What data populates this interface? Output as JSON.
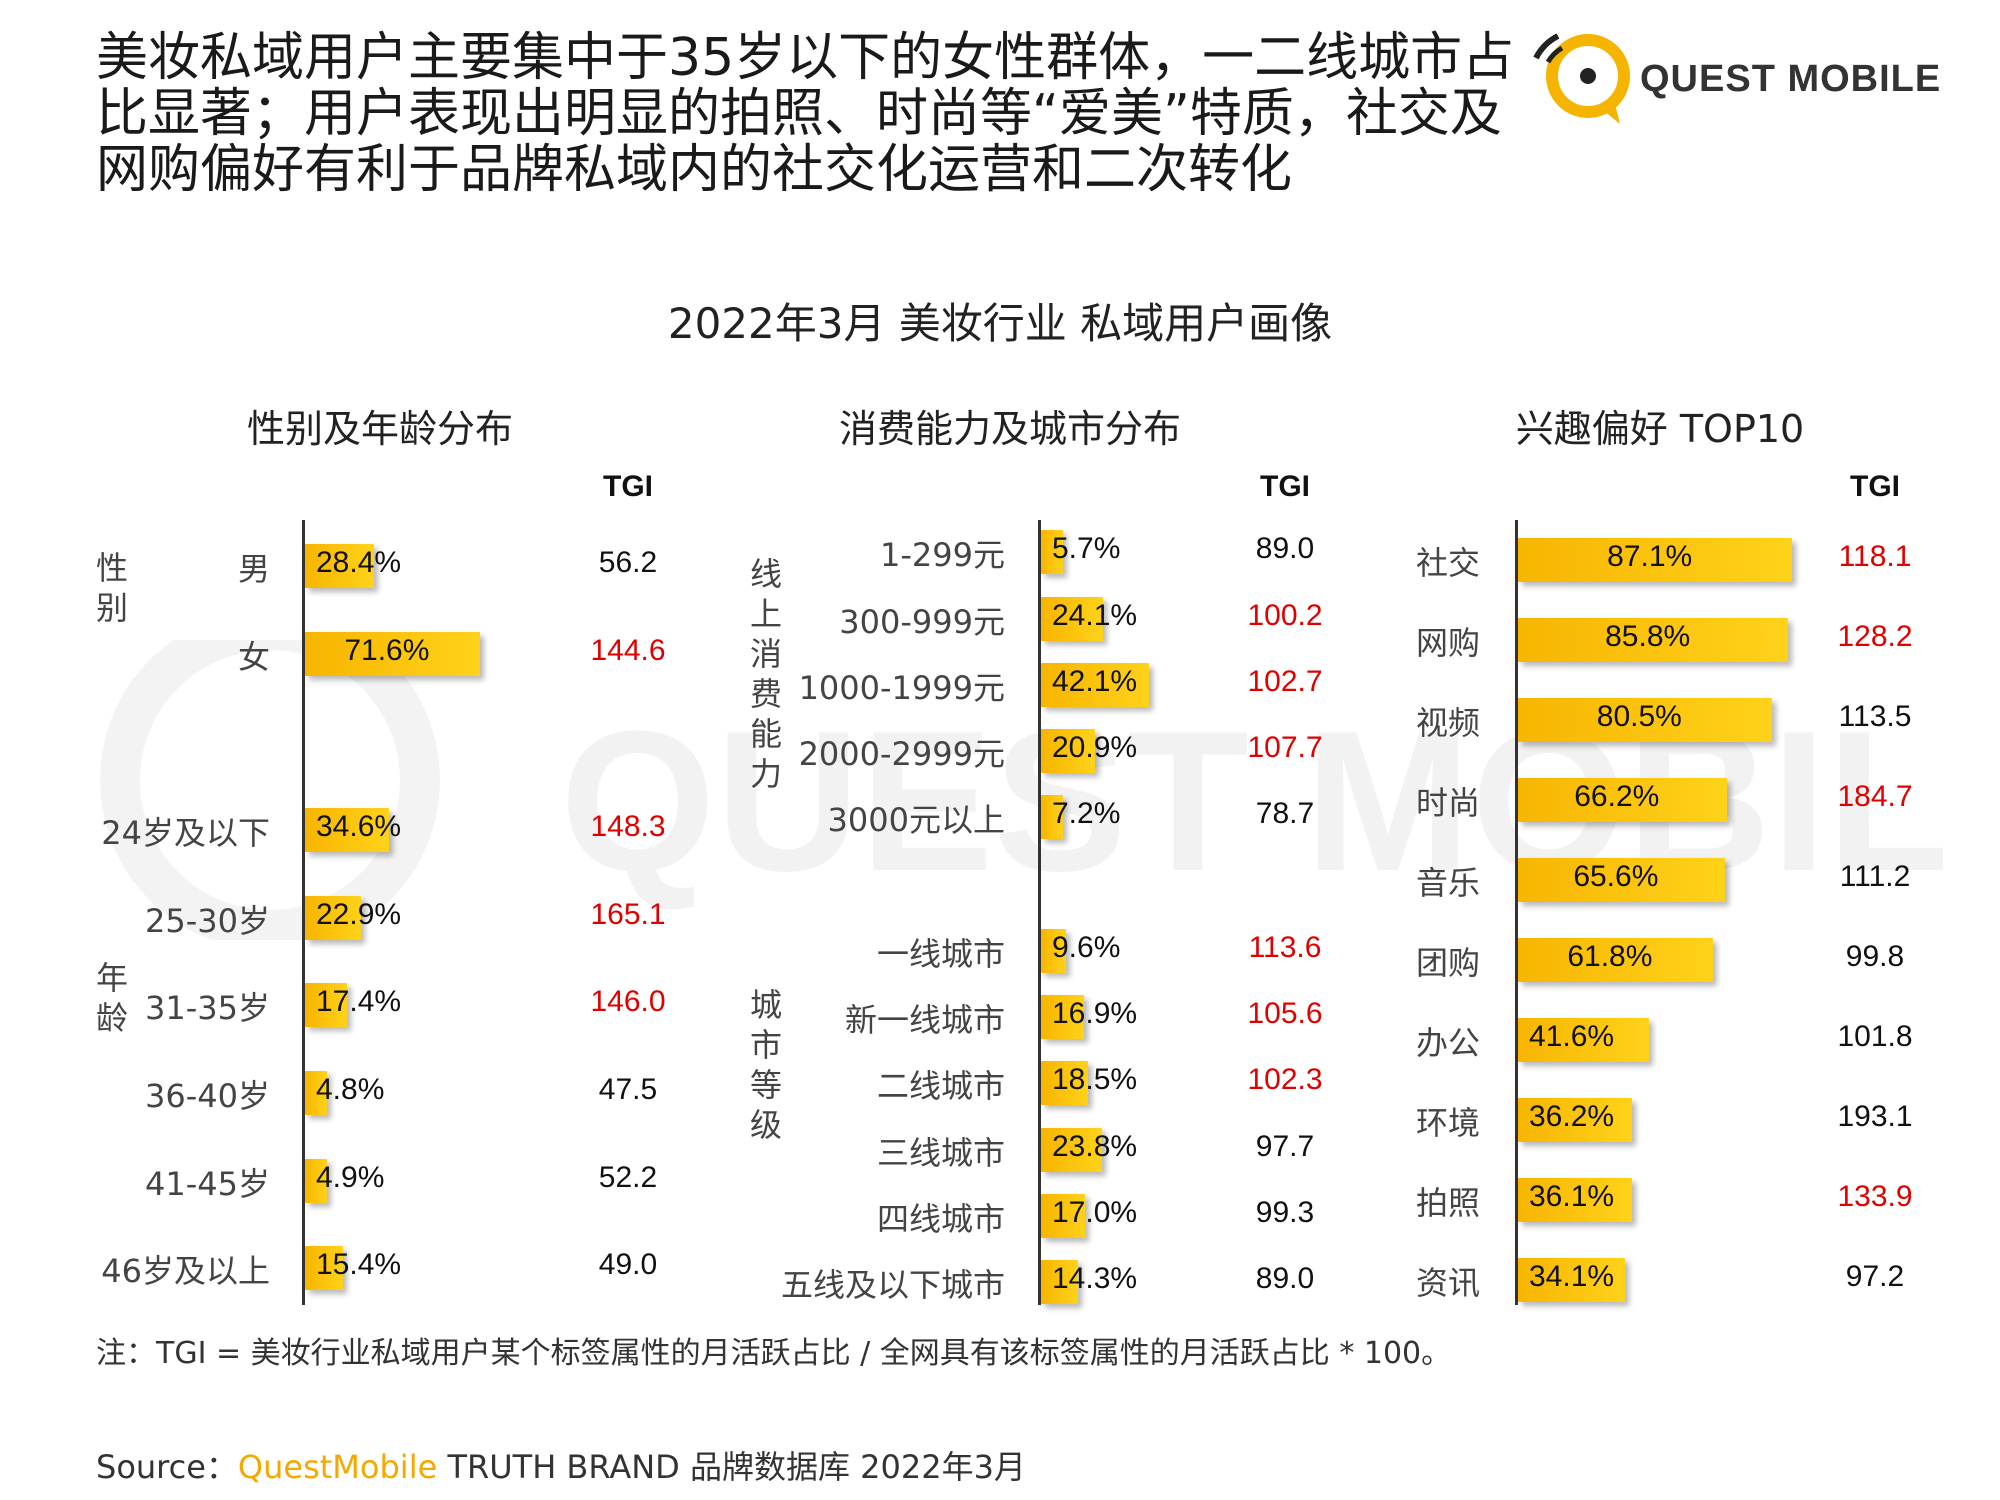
{
  "headline": "美妆私域用户主要集中于35岁以下的女性群体，一二线城市占比显著；用户表现出明显的拍照、时尚等“爱美”特质，社交及网购偏好有利于品牌私域内的社交化运营和二次转化",
  "logo": {
    "text": "QUEST MOBILE",
    "watermark_text": "QUEST MOBILE"
  },
  "subtitle": "2022年3月 美妆行业 私域用户画像",
  "tgi_header": "TGI",
  "colors": {
    "bar": "#f7b500",
    "tgi_high": "#e00000",
    "tgi_normal": "#111111",
    "brand": "#f5a800"
  },
  "chart_data": [
    {
      "type": "bar",
      "title": "性别及年龄分布",
      "groups": [
        {
          "label": "性别",
          "categories": [
            "男",
            "女"
          ],
          "values": [
            28.4,
            71.6
          ],
          "value_labels": [
            "28.4%",
            "71.6%"
          ],
          "tgi": [
            "56.2",
            "144.6"
          ],
          "tgi_highlight": [
            false,
            true
          ]
        },
        {
          "label": "年龄",
          "categories": [
            "24岁及以下",
            "25-30岁",
            "31-35岁",
            "36-40岁",
            "41-45岁",
            "46岁及以上"
          ],
          "values": [
            34.6,
            22.9,
            17.4,
            4.8,
            4.9,
            15.4
          ],
          "value_labels": [
            "34.6%",
            "22.9%",
            "17.4%",
            "4.8%",
            "4.9%",
            "15.4%"
          ],
          "tgi": [
            "148.3",
            "165.1",
            "146.0",
            "47.5",
            "52.2",
            "49.0"
          ],
          "tgi_highlight": [
            true,
            true,
            true,
            false,
            false,
            false
          ]
        }
      ]
    },
    {
      "type": "bar",
      "title": "消费能力及城市分布",
      "groups": [
        {
          "label": "线上消费能力",
          "categories": [
            "1-299元",
            "300-999元",
            "1000-1999元",
            "2000-2999元",
            "3000元以上"
          ],
          "values": [
            5.7,
            24.1,
            42.1,
            20.9,
            7.2
          ],
          "value_labels": [
            "5.7%",
            "24.1%",
            "42.1%",
            "20.9%",
            "7.2%"
          ],
          "tgi": [
            "89.0",
            "100.2",
            "102.7",
            "107.7",
            "78.7"
          ],
          "tgi_highlight": [
            false,
            true,
            true,
            true,
            false
          ]
        },
        {
          "label": "城市等级",
          "categories": [
            "一线城市",
            "新一线城市",
            "二线城市",
            "三线城市",
            "四线城市",
            "五线及以下城市"
          ],
          "values": [
            9.6,
            16.9,
            18.5,
            23.8,
            17.0,
            14.3
          ],
          "value_labels": [
            "9.6%",
            "16.9%",
            "18.5%",
            "23.8%",
            "17.0%",
            "14.3%"
          ],
          "tgi": [
            "113.6",
            "105.6",
            "102.3",
            "97.7",
            "99.3",
            "89.0"
          ],
          "tgi_highlight": [
            true,
            true,
            true,
            false,
            false,
            false
          ]
        }
      ]
    },
    {
      "type": "bar",
      "title": "兴趣偏好 TOP10",
      "groups": [
        {
          "label": "",
          "categories": [
            "社交",
            "网购",
            "视频",
            "时尚",
            "音乐",
            "团购",
            "办公",
            "环境",
            "拍照",
            "资讯"
          ],
          "values": [
            87.1,
            85.8,
            80.5,
            66.2,
            65.6,
            61.8,
            41.6,
            36.2,
            36.1,
            34.1
          ],
          "value_labels": [
            "87.1%",
            "85.8%",
            "80.5%",
            "66.2%",
            "65.6%",
            "61.8%",
            "41.6%",
            "36.2%",
            "36.1%",
            "34.1%"
          ],
          "tgi": [
            "118.1",
            "128.2",
            "113.5",
            "184.7",
            "111.2",
            "99.8",
            "101.8",
            "193.1",
            "133.9",
            "97.2"
          ],
          "tgi_highlight": [
            true,
            true,
            false,
            true,
            false,
            false,
            false,
            false,
            true,
            false
          ]
        }
      ]
    }
  ],
  "note": "注：TGI = 美妆行业私域用户某个标签属性的月活跃占比 / 全网具有该标签属性的月活跃占比 * 100。",
  "source": {
    "prefix": "Source：",
    "brand": "QuestMobile",
    "rest": " TRUTH BRAND 品牌数据库 2022年3月"
  }
}
